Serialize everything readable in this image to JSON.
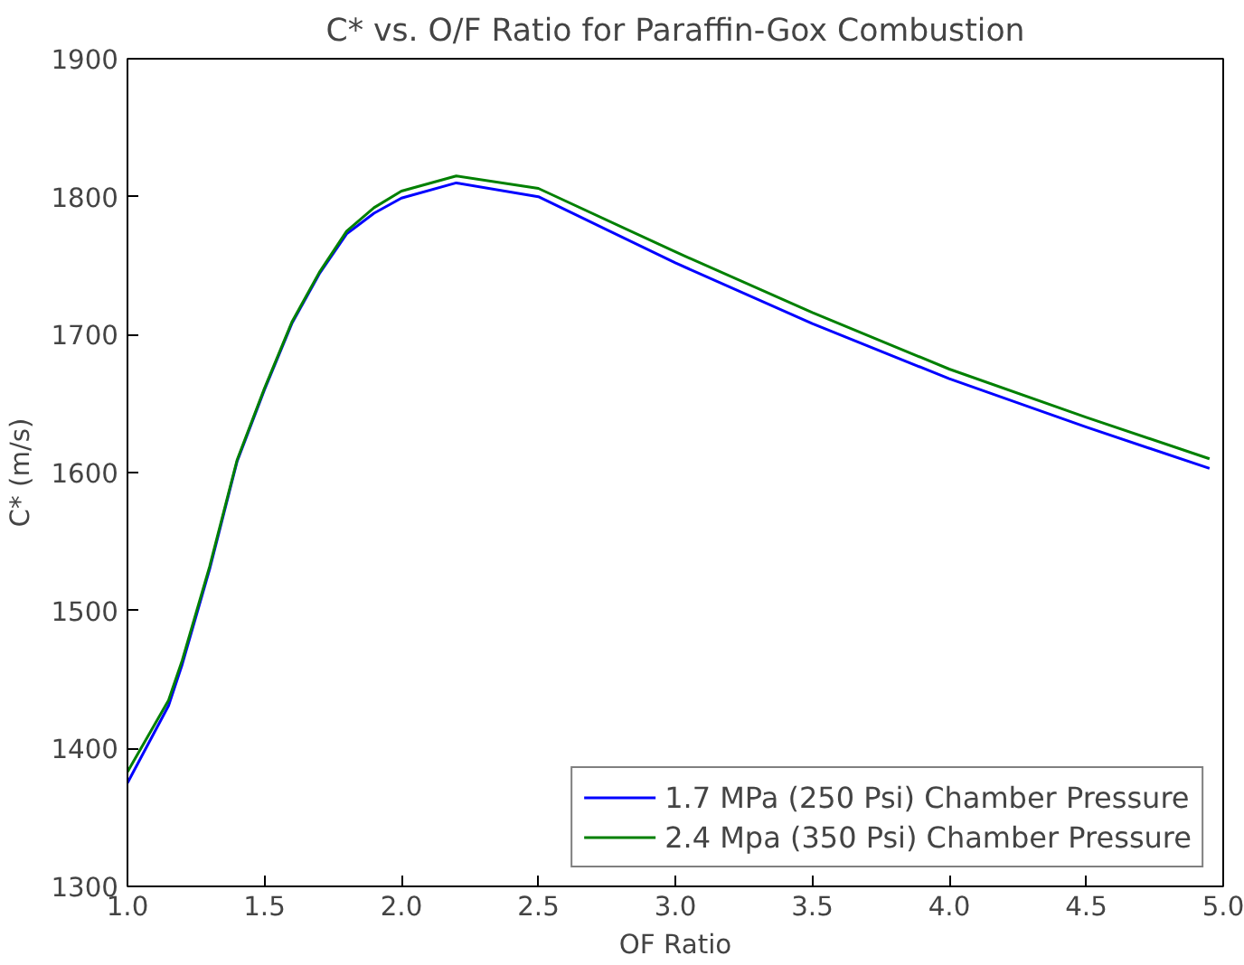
{
  "chart_data": {
    "type": "line",
    "title": "C* vs. O/F Ratio for Paraffin-Gox Combustion",
    "xlabel": "OF Ratio",
    "ylabel": "C* (m/s)",
    "xlim": [
      1.0,
      5.0
    ],
    "ylim": [
      1300,
      1900
    ],
    "xticks": [
      {
        "value": 1.0,
        "label": "1.0"
      },
      {
        "value": 1.5,
        "label": "1.5"
      },
      {
        "value": 2.0,
        "label": "2.0"
      },
      {
        "value": 2.5,
        "label": "2.5"
      },
      {
        "value": 3.0,
        "label": "3.0"
      },
      {
        "value": 3.5,
        "label": "3.5"
      },
      {
        "value": 4.0,
        "label": "4.0"
      },
      {
        "value": 4.5,
        "label": "4.5"
      },
      {
        "value": 5.0,
        "label": "5.0"
      }
    ],
    "yticks": [
      1300,
      1400,
      1500,
      1600,
      1700,
      1800,
      1900
    ],
    "x": [
      1.0,
      1.15,
      1.2,
      1.3,
      1.4,
      1.5,
      1.6,
      1.7,
      1.8,
      1.9,
      2.0,
      2.2,
      2.5,
      3.0,
      3.5,
      4.0,
      4.5,
      4.95
    ],
    "series": [
      {
        "name": "1.7 MPa (250 Psi) Chamber Pressure",
        "color": "#0000ff",
        "values": [
          1375,
          1431,
          1461,
          1530,
          1608,
          1660,
          1708,
          1744,
          1773,
          1788,
          1799,
          1810,
          1800,
          1752,
          1708,
          1668,
          1633,
          1603
        ]
      },
      {
        "name": "2.4 Mpa (350 Psi) Chamber Pressure",
        "color": "#008000",
        "values": [
          1383,
          1435,
          1464,
          1532,
          1609,
          1661,
          1709,
          1745,
          1775,
          1792,
          1804,
          1815,
          1806,
          1760,
          1716,
          1675,
          1640,
          1610
        ]
      }
    ],
    "legend": "bottom right",
    "grid": false
  }
}
